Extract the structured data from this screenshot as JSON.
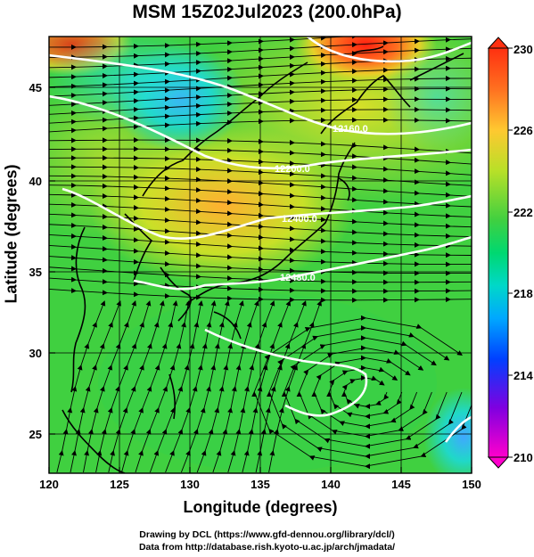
{
  "title": "MSM 15Z02Jul2023 (200.0hPa)",
  "axes": {
    "xlabel": "Longitude (degrees)",
    "ylabel": "Latitude  (degrees)",
    "x_ticks": [
      "120",
      "125",
      "130",
      "135",
      "140",
      "145",
      "150"
    ],
    "y_ticks": [
      "25",
      "30",
      "35",
      "40",
      "45"
    ],
    "x_range": [
      120,
      150
    ],
    "y_range": [
      22.4,
      47.6
    ]
  },
  "contours": {
    "labels": [
      "12160.0",
      "12200.0",
      "12400.0",
      "12480.0"
    ],
    "color": "#ffffff"
  },
  "colorbar": {
    "ticks": [
      "230",
      "226",
      "222",
      "218",
      "214",
      "210"
    ],
    "range": [
      210,
      230
    ],
    "colors": [
      "#ff00cc",
      "#7b00e6",
      "#0030ff",
      "#00a0ff",
      "#00d8d0",
      "#00dc78",
      "#10d040",
      "#70d020",
      "#c8e028",
      "#ffb030",
      "#ff5020",
      "#ff3010"
    ]
  },
  "credits": {
    "line1": "Drawing by DCL (https://www.gfd-dennou.org/library/dcl/)",
    "line2": "Data from http://database.rish.kyoto-u.ac.jp/arch/jmadata/"
  }
}
